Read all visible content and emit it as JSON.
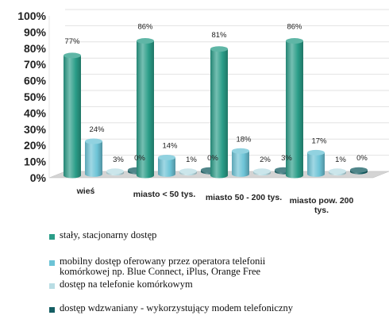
{
  "chart_data": {
    "type": "bar",
    "title": "",
    "xlabel": "",
    "ylabel": "",
    "ylim": [
      0,
      100
    ],
    "yticks": [
      "0%",
      "10%",
      "20%",
      "30%",
      "40%",
      "50%",
      "60%",
      "70%",
      "80%",
      "90%",
      "100%"
    ],
    "categories": [
      [
        "wieś"
      ],
      [
        "miasto < 50 tys."
      ],
      [
        "miasto 50 - 200 tys."
      ],
      [
        "miasto pow. 200",
        "tys."
      ]
    ],
    "series": [
      {
        "name": "stały, stacjonarny dostęp",
        "values": [
          77,
          86,
          81,
          86
        ],
        "labels": [
          "77%",
          "86%",
          "81%",
          "86%"
        ],
        "color": "#2a9d88"
      },
      {
        "name": "mobilny dostęp oferowany przez operatora telefonii komórkowej np. Blue Connect, iPlus, Orange Free",
        "values": [
          24,
          14,
          18,
          17
        ],
        "labels": [
          "24%",
          "14%",
          "18%",
          "17%"
        ],
        "color": "#6cc3d6"
      },
      {
        "name": "dostęp na telefonie komórkowym",
        "values": [
          3,
          1,
          2,
          1
        ],
        "labels": [
          "3%",
          "1%",
          "2%",
          "1%"
        ],
        "color": "#b9dde4"
      },
      {
        "name": "dostęp wdzwaniany - wykorzystujący modem telefoniczny",
        "values": [
          0,
          0,
          3,
          0
        ],
        "labels": [
          "0%",
          "0%",
          "3%",
          "0%"
        ],
        "color": "#155e63"
      }
    ],
    "legend": {
      "placement": "bottom",
      "lines": [
        [
          "stały, stacjonarny dostęp"
        ],
        [
          "mobilny dostęp oferowany przez operatora telefonii",
          "komórkowej np. Blue Connect, iPlus, Orange Free"
        ],
        [
          "dostęp na telefonie komórkowym"
        ],
        [
          "dostęp wdzwaniany - wykorzystujący modem telefoniczny"
        ]
      ]
    }
  }
}
